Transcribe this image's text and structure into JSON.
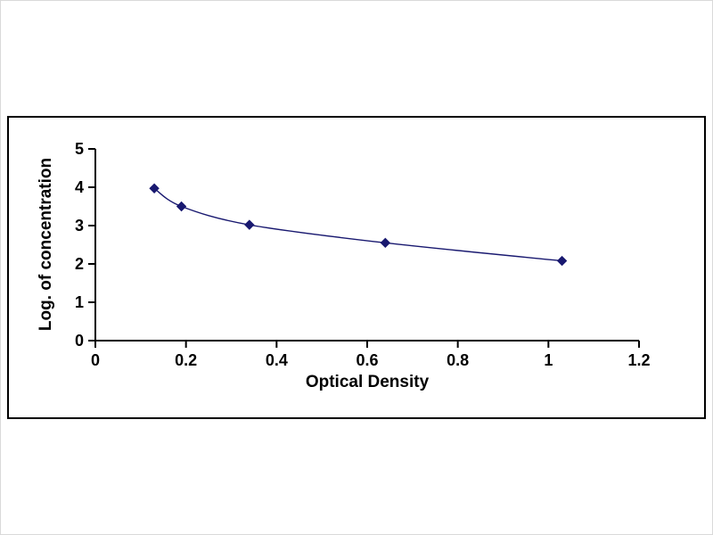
{
  "chart_data": {
    "type": "scatter",
    "title": "",
    "xlabel": "Optical Density",
    "ylabel": "Log. of concentration",
    "x": [
      0.13,
      0.19,
      0.34,
      0.64,
      1.03
    ],
    "y": [
      3.97,
      3.5,
      3.02,
      2.55,
      2.08
    ],
    "xlim": [
      0,
      1.2
    ],
    "ylim": [
      0,
      5
    ],
    "x_ticks": [
      0,
      0.2,
      0.4,
      0.6,
      0.8,
      1,
      1.2
    ],
    "x_tick_labels": [
      "0",
      "0.2",
      "0.4",
      "0.6",
      "0.8",
      "1",
      "1.2"
    ],
    "y_ticks": [
      0,
      1,
      2,
      3,
      4,
      5
    ],
    "y_tick_labels": [
      "0",
      "1",
      "2",
      "3",
      "4",
      "5"
    ],
    "grid": "off",
    "legend": "none",
    "marker": "diamond",
    "series_color": "#191970",
    "axis_color": "#000000",
    "frame_color": "#000000",
    "background_color": "#ffffff"
  }
}
